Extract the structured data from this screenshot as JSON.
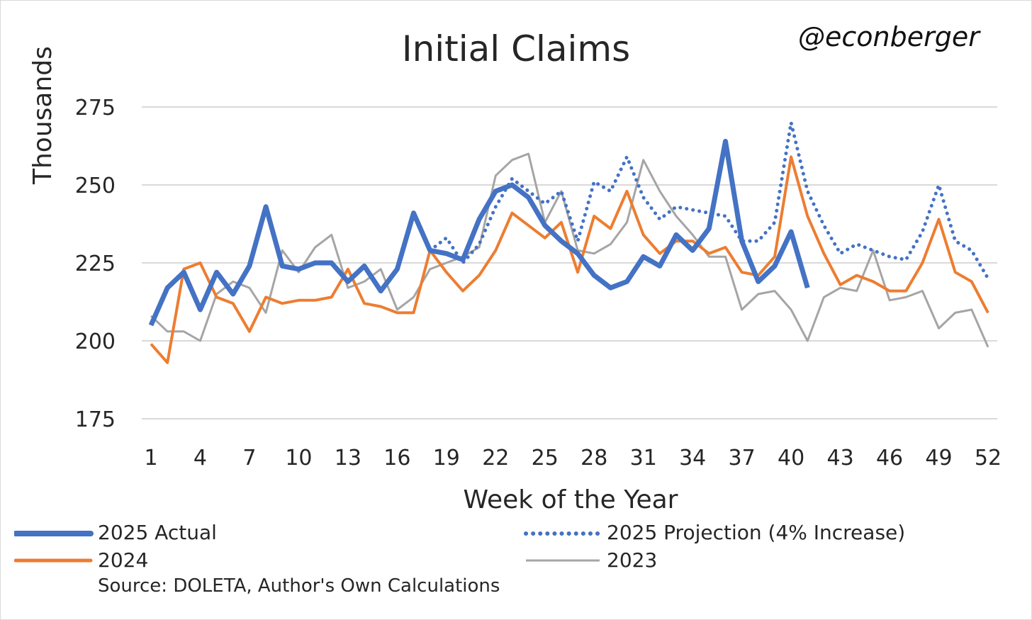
{
  "title": "Initial Claims",
  "watermark": "@econberger",
  "source": "Source: DOLETA, Author's Own Calculations",
  "colors": {
    "actual_2025": "#4472c4",
    "projection_2025": "#4472c4",
    "y2024": "#ed7d31",
    "y2023": "#a5a5a5",
    "grid": "#d9d9d9"
  },
  "chart_data": {
    "type": "line",
    "title": "Initial Claims",
    "xlabel": "Week of the Year",
    "ylabel": "Thousands",
    "xlim": [
      1,
      52
    ],
    "ylim": [
      175,
      275
    ],
    "yticks": [
      175,
      200,
      225,
      250,
      275
    ],
    "xticks": [
      1,
      4,
      7,
      10,
      13,
      16,
      19,
      22,
      25,
      28,
      31,
      34,
      37,
      40,
      43,
      46,
      49,
      52
    ],
    "grid": true,
    "legend_position": "bottom",
    "series": [
      {
        "name": "2025 Actual",
        "style": "solid-thick",
        "x": [
          1,
          2,
          3,
          4,
          5,
          6,
          7,
          8,
          9,
          10,
          11,
          12,
          13,
          14,
          15,
          16,
          17,
          18,
          19,
          20,
          21,
          22,
          23,
          24,
          25,
          26,
          27,
          28,
          29,
          30,
          31,
          32,
          33,
          34,
          35,
          36,
          37,
          38,
          39,
          40,
          41
        ],
        "values": [
          205,
          217,
          222,
          210,
          222,
          215,
          224,
          243,
          224,
          223,
          225,
          225,
          219,
          224,
          216,
          223,
          241,
          229,
          228,
          226,
          239,
          248,
          250,
          246,
          237,
          232,
          228,
          221,
          217,
          219,
          227,
          224,
          234,
          229,
          236,
          264,
          232,
          219,
          224,
          235,
          217
        ]
      },
      {
        "name": "2025 Projection (4% Increase)",
        "style": "dotted",
        "x": [
          18,
          19,
          20,
          21,
          22,
          23,
          24,
          25,
          26,
          27,
          28,
          29,
          30,
          31,
          32,
          33,
          34,
          35,
          36,
          37,
          38,
          39,
          40,
          41,
          42,
          43,
          44,
          45,
          46,
          47,
          48,
          49,
          50,
          51,
          52
        ],
        "values": [
          229,
          233,
          225,
          231,
          243,
          252,
          248,
          244,
          248,
          232,
          251,
          248,
          259,
          246,
          239,
          243,
          242,
          241,
          240,
          232,
          232,
          238,
          270,
          248,
          237,
          228,
          231,
          229,
          227,
          226,
          235,
          250,
          232,
          229,
          220
        ]
      },
      {
        "name": "2024",
        "style": "solid",
        "x": [
          1,
          2,
          3,
          4,
          5,
          6,
          7,
          8,
          9,
          10,
          11,
          12,
          13,
          14,
          15,
          16,
          17,
          18,
          19,
          20,
          21,
          22,
          23,
          24,
          25,
          26,
          27,
          28,
          29,
          30,
          31,
          32,
          33,
          34,
          35,
          36,
          37,
          38,
          39,
          40,
          41,
          42,
          43,
          44,
          45,
          46,
          47,
          48,
          49,
          50,
          51,
          52
        ],
        "values": [
          199,
          193,
          223,
          225,
          214,
          212,
          203,
          214,
          212,
          213,
          213,
          214,
          223,
          212,
          211,
          209,
          209,
          229,
          222,
          216,
          221,
          229,
          241,
          237,
          233,
          238,
          222,
          240,
          236,
          248,
          234,
          228,
          232,
          232,
          228,
          230,
          222,
          221,
          227,
          259,
          240,
          228,
          218,
          221,
          219,
          216,
          216,
          225,
          239,
          222,
          219,
          209
        ]
      },
      {
        "name": "2023",
        "style": "thin",
        "x": [
          1,
          2,
          3,
          4,
          5,
          6,
          7,
          8,
          9,
          10,
          11,
          12,
          13,
          14,
          15,
          16,
          17,
          18,
          19,
          20,
          21,
          22,
          23,
          24,
          25,
          26,
          27,
          28,
          29,
          30,
          31,
          32,
          33,
          34,
          35,
          36,
          37,
          38,
          39,
          40,
          41,
          42,
          43,
          44,
          45,
          46,
          47,
          48,
          49,
          50,
          51,
          52
        ],
        "values": [
          208,
          203,
          203,
          200,
          215,
          219,
          217,
          209,
          229,
          222,
          230,
          234,
          217,
          219,
          223,
          210,
          214,
          223,
          225,
          227,
          230,
          253,
          258,
          260,
          238,
          248,
          229,
          228,
          231,
          238,
          258,
          248,
          240,
          234,
          227,
          227,
          210,
          215,
          216,
          210,
          200,
          214,
          217,
          216,
          229,
          213,
          214,
          216,
          204,
          209,
          210,
          198
        ]
      }
    ]
  },
  "legend": {
    "actual_2025": "2025 Actual",
    "projection_2025": "2025 Projection (4% Increase)",
    "y2024": "2024",
    "y2023": "2023"
  }
}
